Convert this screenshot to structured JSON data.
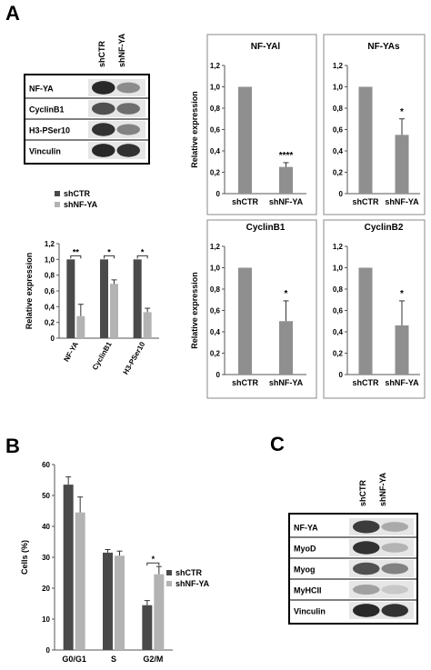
{
  "panels": {
    "a": "A",
    "b": "B",
    "c": "C"
  },
  "colors": {
    "dark": "#4a4a4a",
    "light": "#b3b3b3",
    "single": "#8f8f8f",
    "border": "#888888"
  },
  "blot_a": {
    "lanes": [
      "shCTR",
      "shNF-YA"
    ],
    "rows": [
      {
        "label": "NF-YA",
        "intensity": [
          0.95,
          0.45
        ]
      },
      {
        "label": "CyclinB1",
        "intensity": [
          0.75,
          0.6
        ]
      },
      {
        "label": "H3-PSer10",
        "intensity": [
          0.9,
          0.5
        ]
      },
      {
        "label": "Vinculin",
        "intensity": [
          0.95,
          0.9
        ]
      }
    ]
  },
  "blot_c": {
    "lanes": [
      "shCTR",
      "shNF-YA"
    ],
    "rows": [
      {
        "label": "NF-YA",
        "intensity": [
          0.85,
          0.3
        ]
      },
      {
        "label": "MyoD",
        "intensity": [
          0.9,
          0.25
        ]
      },
      {
        "label": "Myog",
        "intensity": [
          0.75,
          0.5
        ]
      },
      {
        "label": "MyHCII",
        "intensity": [
          0.35,
          0.15
        ]
      },
      {
        "label": "Vinculin",
        "intensity": [
          0.95,
          0.9
        ]
      }
    ]
  },
  "chart_data": [
    {
      "id": "a-summary",
      "type": "bar",
      "categories": [
        "NF-YA",
        "CyclinB1",
        "H3-PSer10"
      ],
      "series": [
        {
          "name": "shCTR",
          "values": [
            1.0,
            1.0,
            1.0
          ],
          "errors": [
            0,
            0,
            0
          ]
        },
        {
          "name": "shNF-YA",
          "values": [
            0.28,
            0.69,
            0.33
          ],
          "errors": [
            0.15,
            0.05,
            0.05
          ]
        }
      ],
      "ylabel": "Relative expression",
      "ylim": [
        0,
        1.2
      ],
      "yticks": [
        "0",
        "0,2",
        "0,4",
        "0,6",
        "0,8",
        "1,0",
        "1,2"
      ],
      "significance": [
        "**",
        "*",
        "*"
      ],
      "legend": "top-left"
    },
    {
      "id": "a-nfyal",
      "type": "bar",
      "title": "NF-YAl",
      "categories": [
        "shCTR",
        "shNF-YA"
      ],
      "values": [
        1.0,
        0.25
      ],
      "errors": [
        0,
        0.04
      ],
      "ylabel": "Relative expression",
      "ylim": [
        0,
        1.2
      ],
      "yticks": [
        "0",
        "0,2",
        "0,4",
        "0,6",
        "0,8",
        "1,0",
        "1,2"
      ],
      "significance": "****"
    },
    {
      "id": "a-nfyas",
      "type": "bar",
      "title": "NF-YAs",
      "categories": [
        "shCTR",
        "shNF-YA"
      ],
      "values": [
        1.0,
        0.55
      ],
      "errors": [
        0,
        0.15
      ],
      "ylim": [
        0,
        1.2
      ],
      "yticks": [
        "0",
        "0,2",
        "0,4",
        "0,6",
        "0,8",
        "1,0",
        "1,2"
      ],
      "significance": "*"
    },
    {
      "id": "a-cyclinb1",
      "type": "bar",
      "title": "CyclinB1",
      "categories": [
        "shCTR",
        "shNF-YA"
      ],
      "values": [
        1.0,
        0.5
      ],
      "errors": [
        0,
        0.19
      ],
      "ylabel": "Relative expression",
      "ylim": [
        0,
        1.2
      ],
      "yticks": [
        "0",
        "0,2",
        "0,4",
        "0,6",
        "0,8",
        "1,0",
        "1,2"
      ],
      "significance": "*"
    },
    {
      "id": "a-cyclinb2",
      "type": "bar",
      "title": "CyclinB2",
      "categories": [
        "shCTR",
        "shNF-YA"
      ],
      "values": [
        1.0,
        0.46
      ],
      "errors": [
        0,
        0.23
      ],
      "ylim": [
        0,
        1.2
      ],
      "yticks": [
        "0",
        "0,2",
        "0,4",
        "0,6",
        "0,8",
        "1,0",
        "1,2"
      ],
      "significance": "*"
    },
    {
      "id": "b-cellcycle",
      "type": "bar",
      "categories": [
        "G0/G1",
        "S",
        "G2/M"
      ],
      "series": [
        {
          "name": "shCTR",
          "values": [
            53.5,
            31.5,
            14.5
          ],
          "errors": [
            2.5,
            1.0,
            1.5
          ]
        },
        {
          "name": "shNF-YA",
          "values": [
            44.5,
            30.5,
            24.5
          ],
          "errors": [
            5.0,
            1.5,
            2.5
          ]
        }
      ],
      "ylabel": "Cells (%)",
      "ylim": [
        0,
        60
      ],
      "yticks": [
        "0",
        "10",
        "20",
        "30",
        "40",
        "50",
        "60"
      ],
      "significance": [
        null,
        null,
        "*"
      ],
      "legend": "right"
    }
  ]
}
